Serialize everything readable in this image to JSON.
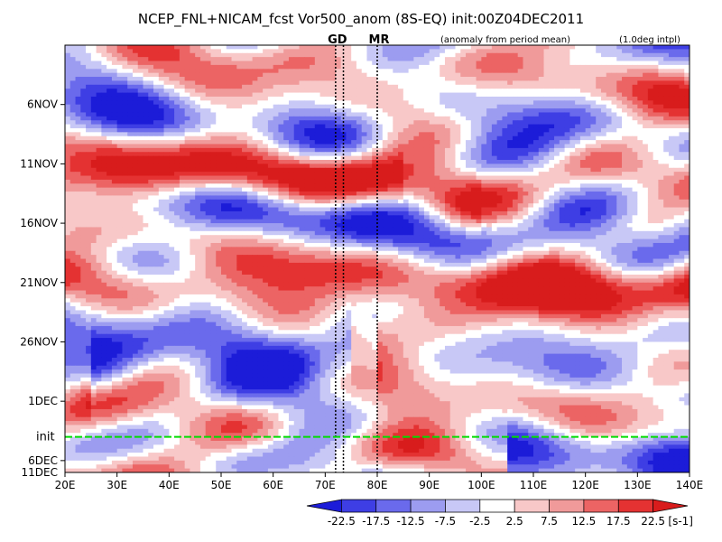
{
  "chart_data": {
    "type": "heatmap",
    "title": "NCEP_FNL+NICAM_fcst Vor500_anom (8S-EQ) init:00Z04DEC2011",
    "annotations": {
      "anomaly_note": "(anomaly from period mean)",
      "interp_note": "(1.0deg intpl)",
      "init_label": "init",
      "init_color": "#00dd00",
      "reference_lines": [
        {
          "label": "GD",
          "lon": 72
        },
        {
          "label": "MR",
          "lon": 73.5
        },
        {
          "label": "",
          "lon": 80
        }
      ]
    },
    "x_axis": {
      "range": [
        20,
        140
      ],
      "ticks": [
        20,
        30,
        40,
        50,
        60,
        70,
        80,
        90,
        100,
        110,
        120,
        130,
        140
      ],
      "tick_labels": [
        "20E",
        "30E",
        "40E",
        "50E",
        "60E",
        "70E",
        "80E",
        "90E",
        "100E",
        "110E",
        "120E",
        "130E",
        "140E"
      ]
    },
    "y_axis": {
      "range_days": [
        0,
        36
      ],
      "ticks": [
        5,
        10,
        15,
        20,
        25,
        30,
        35
      ],
      "tick_labels": [
        "6NOV",
        "11NOV",
        "16NOV",
        "21NOV",
        "26NOV",
        "1DEC",
        "6DEC",
        "11DEC"
      ],
      "tick_label_days": [
        5,
        10,
        15,
        20,
        25,
        30,
        35,
        40
      ],
      "init_day": 33
    },
    "colorbar": {
      "levels": [
        -22.5,
        -17.5,
        -12.5,
        -7.5,
        -2.5,
        2.5,
        7.5,
        12.5,
        17.5,
        22.5
      ],
      "labels": [
        "-22.5",
        "-17.5",
        "-12.5",
        "-7.5",
        "-2.5",
        "2.5",
        "7.5",
        "12.5",
        "17.5",
        "22.5"
      ],
      "unit": "[s-1]",
      "colors": [
        "#1c1cd8",
        "#3e3ee4",
        "#6a6aec",
        "#9c9cf0",
        "#c8c8f6",
        "#ffffff",
        "#f8c8c8",
        "#f09a9a",
        "#ec6464",
        "#e43232",
        "#d81c1c"
      ]
    }
  }
}
